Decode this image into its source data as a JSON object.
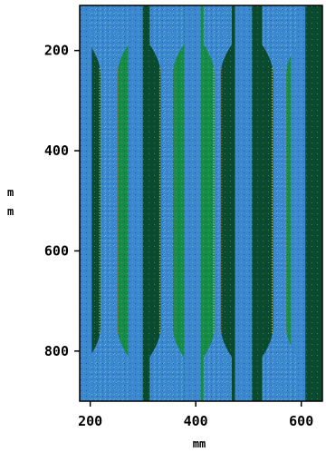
{
  "chart_data": {
    "type": "heatmap",
    "title": "",
    "xlabel": "mm",
    "ylabel": "mm",
    "x_ticks": [
      200,
      400,
      600
    ],
    "y_ticks": [
      200,
      400,
      600,
      800
    ],
    "xlim": [
      180,
      640
    ],
    "ylim": [
      900,
      110
    ],
    "y_axis_direction": "downward",
    "grid": false,
    "legend": "none",
    "tint_zones_x_ranges": [
      [
        216,
        255
      ],
      [
        330,
        360
      ],
      [
        432,
        451
      ],
      [
        543,
        575
      ]
    ],
    "colors": {
      "background": "#0e5b3c",
      "dark_band": "#0a4a2e",
      "light_band": "#178b48",
      "blue_band": "#3b88d0",
      "blue_speckle": "#62b6ff",
      "edge_red": "#e85a5a",
      "edge_yellow": "#f2e36a",
      "frame": "#000000"
    }
  }
}
